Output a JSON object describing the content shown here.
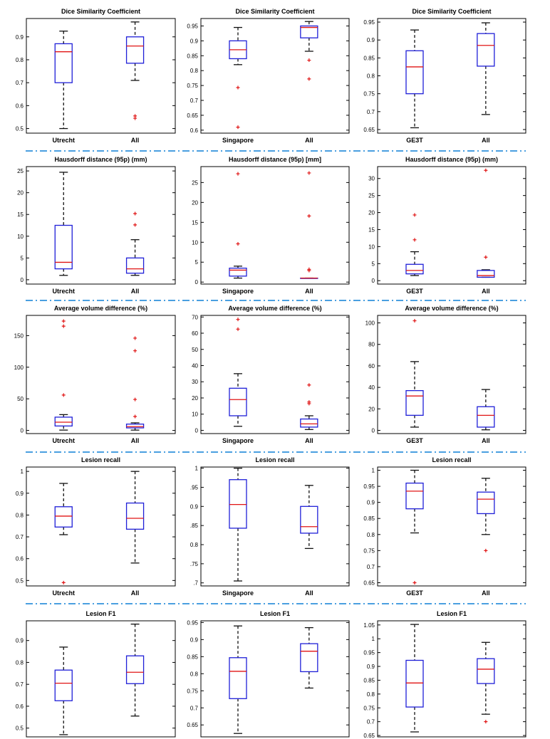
{
  "colors": {
    "box": "#1f1fd8",
    "median": "#e01414",
    "whisker": "#111111",
    "outlier": "#e01414",
    "frame": "#000000",
    "separator": "#4a9fe0"
  },
  "chart_data": [
    {
      "type": "box",
      "title": "Dice Similarity Coefficient",
      "categories": [
        "Utrecht",
        "All"
      ],
      "ylim": [
        0.48,
        0.98
      ],
      "yticks": [
        0.5,
        0.6,
        0.7,
        0.8,
        0.9
      ],
      "ytick_labels": [
        "0.5",
        "0.6",
        "0.7",
        "0.8",
        "0.9"
      ],
      "boxes": [
        {
          "min": 0.5,
          "q1": 0.7,
          "median": 0.835,
          "q3": 0.87,
          "max": 0.925,
          "outliers": []
        },
        {
          "min": 0.71,
          "q1": 0.785,
          "median": 0.86,
          "q3": 0.9,
          "max": 0.965,
          "outliers": [
            0.555,
            0.545
          ]
        }
      ]
    },
    {
      "type": "box",
      "title": "Dice Similarity Coefficient",
      "categories": [
        "Singapore",
        "All"
      ],
      "ylim": [
        0.59,
        0.975
      ],
      "yticks": [
        0.6,
        0.65,
        0.7,
        0.75,
        0.8,
        0.85,
        0.9,
        0.95
      ],
      "ytick_labels": [
        "0.6",
        "0.65",
        "0.7",
        "0.75",
        "0.8",
        "0.85",
        "0.9",
        "0.95"
      ],
      "boxes": [
        {
          "min": 0.82,
          "q1": 0.84,
          "median": 0.87,
          "q3": 0.9,
          "max": 0.945,
          "outliers": [
            0.743,
            0.61
          ]
        },
        {
          "min": 0.865,
          "q1": 0.91,
          "median": 0.945,
          "q3": 0.95,
          "max": 0.965,
          "outliers": [
            0.835,
            0.772
          ]
        }
      ]
    },
    {
      "type": "box",
      "title": "Dice Similarity Coefficient",
      "categories": [
        "GE3T",
        "All"
      ],
      "ylim": [
        0.64,
        0.96
      ],
      "yticks": [
        0.65,
        0.7,
        0.75,
        0.8,
        0.85,
        0.9,
        0.95
      ],
      "ytick_labels": [
        "0.65",
        "0.7",
        "0.75",
        "0.8",
        "0.85",
        "0.9",
        "0.95"
      ],
      "boxes": [
        {
          "min": 0.655,
          "q1": 0.75,
          "median": 0.825,
          "q3": 0.87,
          "max": 0.928,
          "outliers": []
        },
        {
          "min": 0.692,
          "q1": 0.827,
          "median": 0.885,
          "q3": 0.918,
          "max": 0.948,
          "outliers": []
        }
      ]
    },
    {
      "type": "box",
      "title": "Hausdorff distance (95p) (mm)",
      "categories": [
        "Utrecht",
        "All"
      ],
      "ylim": [
        -1,
        26
      ],
      "yticks": [
        0,
        5,
        10,
        15,
        20,
        25
      ],
      "ytick_labels": [
        "0",
        "5",
        "10",
        "15",
        "20",
        "25"
      ],
      "boxes": [
        {
          "min": 1.0,
          "q1": 2.5,
          "median": 4.0,
          "q3": 12.5,
          "max": 24.7,
          "outliers": []
        },
        {
          "min": 1.0,
          "q1": 1.5,
          "median": 2.5,
          "q3": 5.0,
          "max": 9.2,
          "outliers": [
            15.2,
            12.6
          ]
        }
      ]
    },
    {
      "type": "box",
      "title": "Hausdorff distance (95p) [mm]",
      "categories": [
        "Singapore",
        "All"
      ],
      "ylim": [
        -0.5,
        29
      ],
      "yticks": [
        0,
        5,
        10,
        15,
        20,
        25
      ],
      "ytick_labels": [
        "0",
        "5",
        "10",
        "15",
        "20",
        "25"
      ],
      "boxes": [
        {
          "min": 1.0,
          "q1": 1.5,
          "median": 3.0,
          "q3": 3.5,
          "max": 4.0,
          "outliers": [
            27.2,
            9.6
          ]
        },
        {
          "min": 1.0,
          "q1": 1.0,
          "median": 1.0,
          "q3": 1.0,
          "max": 1.0,
          "outliers": [
            27.4,
            16.6,
            3.2,
            2.9
          ]
        }
      ]
    },
    {
      "type": "box",
      "title": "Hausdorff distance (95p) (mm)",
      "categories": [
        "GE3T",
        "All"
      ],
      "ylim": [
        -1,
        33.5
      ],
      "yticks": [
        0,
        5,
        10,
        15,
        20,
        25,
        30
      ],
      "ytick_labels": [
        "0",
        "5",
        "10",
        "15",
        "20",
        "25",
        "30"
      ],
      "boxes": [
        {
          "min": 1.5,
          "q1": 2.0,
          "median": 3.0,
          "q3": 4.8,
          "max": 8.5,
          "outliers": [
            19.3,
            12.0
          ]
        },
        {
          "min": 1.0,
          "q1": 1.0,
          "median": 1.5,
          "q3": 3.0,
          "max": 3.2,
          "outliers": [
            32.4,
            6.9
          ]
        }
      ]
    },
    {
      "type": "box",
      "title": "Average volume difference  (%)",
      "categories": [
        "Utrecht",
        "All"
      ],
      "ylim": [
        -5,
        182
      ],
      "yticks": [
        0,
        50,
        100,
        150
      ],
      "ytick_labels": [
        "0",
        "50",
        "100",
        "150"
      ],
      "boxes": [
        {
          "min": 0.5,
          "q1": 7,
          "median": 13,
          "q3": 21,
          "max": 25,
          "outliers": [
            173,
            165,
            56
          ]
        },
        {
          "min": 0.5,
          "q1": 4,
          "median": 6,
          "q3": 10,
          "max": 12,
          "outliers": [
            146,
            126,
            49,
            22
          ]
        }
      ]
    },
    {
      "type": "box",
      "title": "Average volume difference  (%)",
      "categories": [
        "Singapore",
        "All"
      ],
      "ylim": [
        -2,
        71
      ],
      "yticks": [
        0,
        10,
        20,
        30,
        40,
        50,
        60,
        70
      ],
      "ytick_labels": [
        "0",
        "10",
        "20",
        "30",
        "40",
        "50",
        "60",
        "70"
      ],
      "boxes": [
        {
          "min": 2.5,
          "q1": 9,
          "median": 19,
          "q3": 26,
          "max": 35,
          "outliers": [
            68.5,
            62.5
          ]
        },
        {
          "min": 0.5,
          "q1": 2,
          "median": 4,
          "q3": 7,
          "max": 9,
          "outliers": [
            28,
            17.5,
            16.5
          ]
        }
      ]
    },
    {
      "type": "box",
      "title": "Average volume difference  (%)",
      "categories": [
        "GE3T",
        "All"
      ],
      "ylim": [
        -3,
        107
      ],
      "yticks": [
        0,
        20,
        40,
        60,
        80,
        100
      ],
      "ytick_labels": [
        "0",
        "20",
        "40",
        "60",
        "80",
        "100"
      ],
      "boxes": [
        {
          "min": 3,
          "q1": 14,
          "median": 32,
          "q3": 37,
          "max": 64,
          "outliers": [
            102
          ]
        },
        {
          "min": 0.5,
          "q1": 3,
          "median": 14,
          "q3": 22,
          "max": 38,
          "outliers": []
        }
      ]
    },
    {
      "type": "box",
      "title": "Lesion recall",
      "categories": [
        "Utrecht",
        "All"
      ],
      "ylim": [
        0.475,
        1.02
      ],
      "yticks": [
        0.5,
        0.6,
        0.7,
        0.8,
        0.9,
        1.0
      ],
      "ytick_labels": [
        "0.5",
        "0.6",
        "0.7",
        "0.8",
        "0.9",
        "1"
      ],
      "boxes": [
        {
          "min": 0.71,
          "q1": 0.745,
          "median": 0.795,
          "q3": 0.838,
          "max": 0.945,
          "outliers": [
            0.49
          ]
        },
        {
          "min": 0.58,
          "q1": 0.735,
          "median": 0.785,
          "q3": 0.855,
          "max": 1.0,
          "outliers": []
        }
      ]
    },
    {
      "type": "box",
      "title": "Lesion recall",
      "categories": [
        "Singapore",
        "All"
      ],
      "ylim": [
        0.692,
        1.003
      ],
      "yticks": [
        0.7,
        0.75,
        0.8,
        0.85,
        0.9,
        0.95,
        1.0
      ],
      "ytick_labels": [
        ".7",
        ".75",
        "0.8",
        ".85",
        "0.9",
        ".95",
        "1"
      ],
      "boxes": [
        {
          "min": 0.705,
          "q1": 0.843,
          "median": 0.905,
          "q3": 0.97,
          "max": 1.0,
          "outliers": []
        },
        {
          "min": 0.79,
          "q1": 0.83,
          "median": 0.847,
          "q3": 0.9,
          "max": 0.955,
          "outliers": []
        }
      ]
    },
    {
      "type": "box",
      "title": "Lesion recall",
      "categories": [
        "GE3T",
        "All"
      ],
      "ylim": [
        0.64,
        1.01
      ],
      "yticks": [
        0.65,
        0.7,
        0.75,
        0.8,
        0.85,
        0.9,
        0.95,
        1.0
      ],
      "ytick_labels": [
        "0.65",
        "0.7",
        "0.75",
        "0.8",
        "0.85",
        "0.9",
        "0.95",
        "1"
      ],
      "boxes": [
        {
          "min": 0.805,
          "q1": 0.88,
          "median": 0.935,
          "q3": 0.96,
          "max": 1.0,
          "outliers": [
            0.65
          ]
        },
        {
          "min": 0.8,
          "q1": 0.865,
          "median": 0.91,
          "q3": 0.932,
          "max": 0.975,
          "outliers": [
            0.75
          ]
        }
      ]
    },
    {
      "type": "box",
      "title": "Lesion F1",
      "categories": [],
      "ylim": [
        0.46,
        0.99
      ],
      "yticks": [
        0.5,
        0.6,
        0.7,
        0.8,
        0.9
      ],
      "ytick_labels": [
        "0.5",
        "0.6",
        "0.7",
        "0.8",
        "0.9"
      ],
      "boxes": [
        {
          "min": 0.47,
          "q1": 0.625,
          "median": 0.705,
          "q3": 0.765,
          "max": 0.87,
          "outliers": []
        },
        {
          "min": 0.555,
          "q1": 0.703,
          "median": 0.755,
          "q3": 0.83,
          "max": 0.975,
          "outliers": []
        }
      ]
    },
    {
      "type": "box",
      "title": "Lesion F1",
      "categories": [],
      "ylim": [
        0.615,
        0.955
      ],
      "yticks": [
        0.65,
        0.7,
        0.75,
        0.8,
        0.85,
        0.9,
        0.95
      ],
      "ytick_labels": [
        "0.65",
        "0.7",
        "0.75",
        "0.8",
        "0.85",
        "0.9",
        "0.95"
      ],
      "boxes": [
        {
          "min": 0.625,
          "q1": 0.727,
          "median": 0.807,
          "q3": 0.847,
          "max": 0.94,
          "outliers": []
        },
        {
          "min": 0.758,
          "q1": 0.806,
          "median": 0.866,
          "q3": 0.888,
          "max": 0.935,
          "outliers": []
        }
      ]
    },
    {
      "type": "box",
      "title": "Lesion F1",
      "categories": [],
      "ylim": [
        0.645,
        1.065
      ],
      "yticks": [
        0.65,
        0.7,
        0.75,
        0.8,
        0.85,
        0.9,
        0.95,
        1.0,
        1.05
      ],
      "ytick_labels": [
        "0.65",
        "0.7",
        "0.75",
        "0.8",
        "0.85",
        "0.9",
        "0.95",
        "1",
        "1.05"
      ],
      "boxes": [
        {
          "min": 0.663,
          "q1": 0.753,
          "median": 0.84,
          "q3": 0.922,
          "max": 1.052,
          "outliers": []
        },
        {
          "min": 0.727,
          "q1": 0.838,
          "median": 0.89,
          "q3": 0.928,
          "max": 0.987,
          "outliers": [
            0.7
          ]
        }
      ]
    }
  ]
}
